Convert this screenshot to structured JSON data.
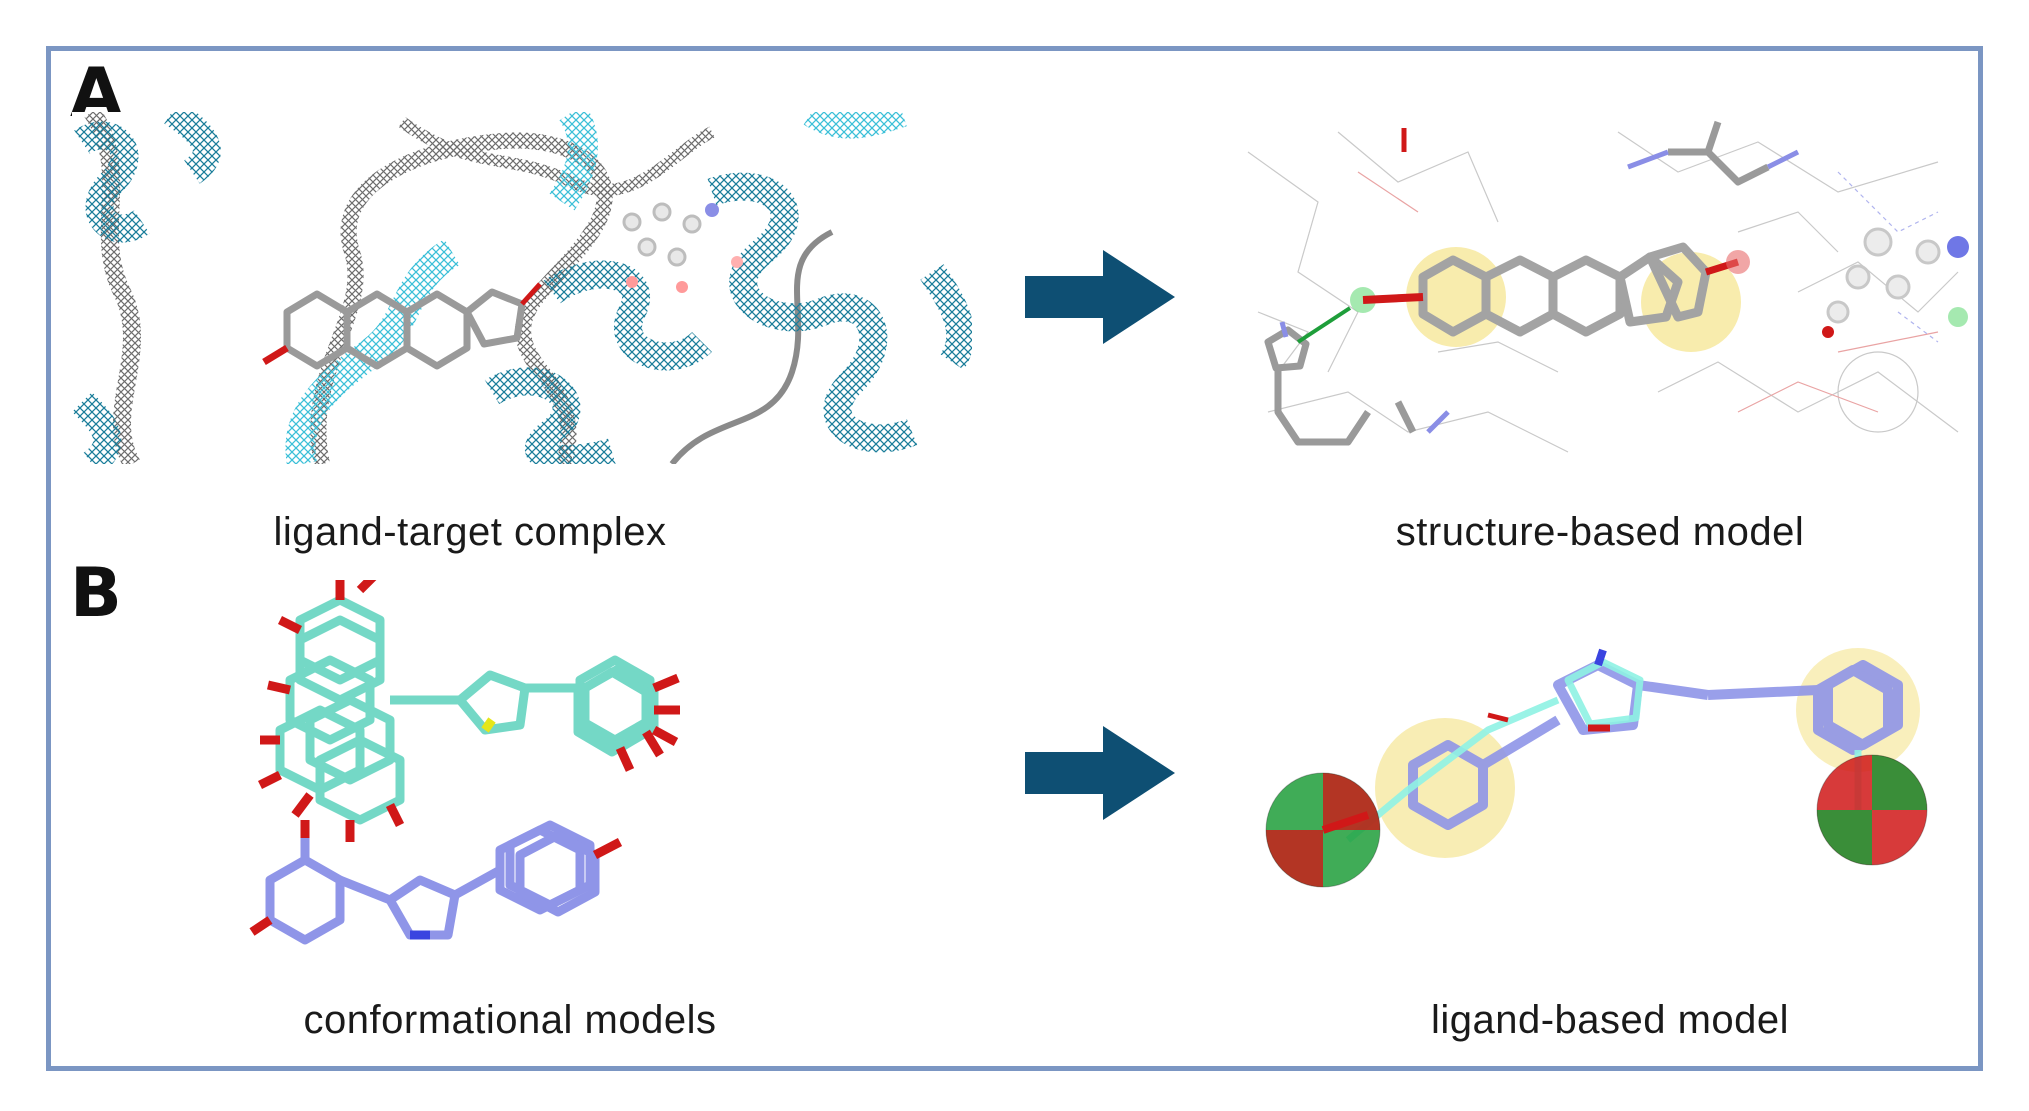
{
  "panels": [
    {
      "letter": "A",
      "left_caption": "ligand-target complex",
      "right_caption": "structure-based model"
    },
    {
      "letter": "B",
      "left_caption": "conformational models",
      "right_caption": "ligand-based model"
    }
  ],
  "colors": {
    "border": "#7b96c3",
    "arrow": "#0e4f73",
    "ribbon_teal": "#1a7d9a",
    "ribbon_gray": "#7a7a7a",
    "carbon_teal": "#6dd6c4",
    "carbon_blue": "#8f95e8",
    "oxygen": "#d01818",
    "hydrophobic": "#f2dc6a",
    "hbond_green": "#1e9e3a"
  },
  "icons": [
    "right-arrow-icon",
    "right-arrow-icon"
  ]
}
